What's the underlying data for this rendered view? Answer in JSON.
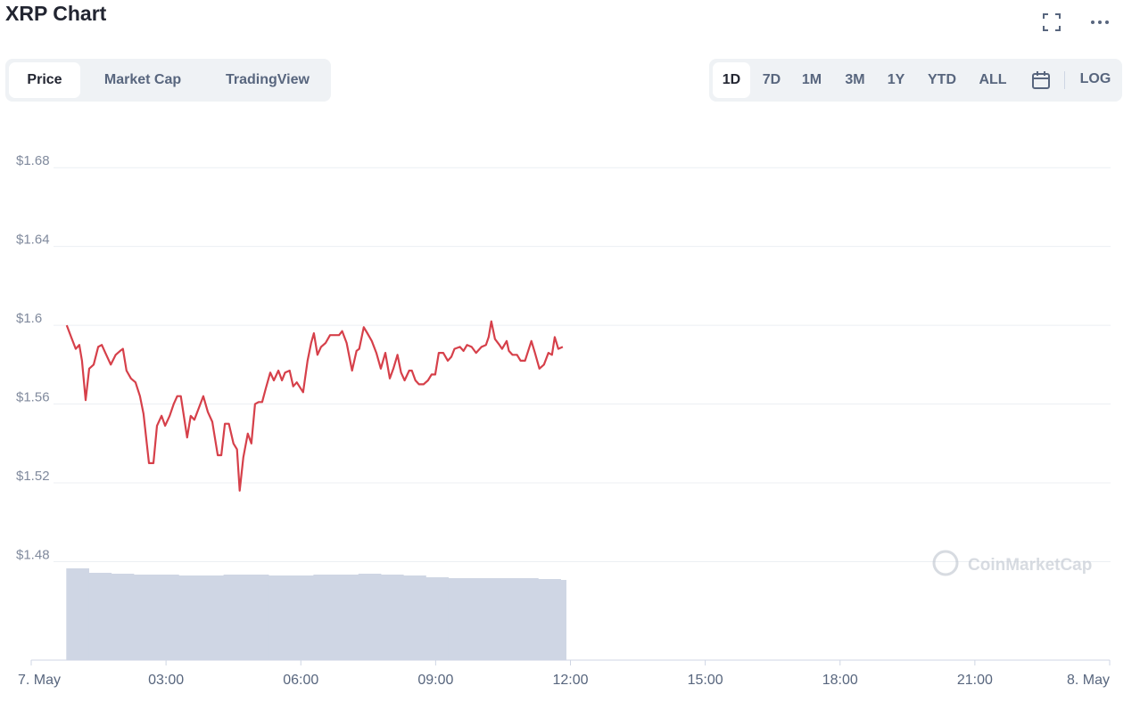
{
  "chart_data": {
    "type": "line",
    "title": "XRP Chart",
    "x": [
      0.79,
      0.89,
      0.99,
      1.07,
      1.13,
      1.21,
      1.29,
      1.39,
      1.49,
      1.57,
      1.65,
      1.77,
      1.88,
      1.98,
      2.04,
      2.12,
      2.22,
      2.32,
      2.42,
      2.5,
      2.62,
      2.72,
      2.8,
      2.9,
      2.98,
      3.08,
      3.17,
      3.25,
      3.33,
      3.47,
      3.55,
      3.63,
      3.73,
      3.83,
      3.93,
      4.03,
      4.15,
      4.23,
      4.31,
      4.4,
      4.5,
      4.58,
      4.64,
      4.72,
      4.82,
      4.9,
      4.98,
      5.06,
      5.14,
      5.22,
      5.32,
      5.4,
      5.5,
      5.58,
      5.65,
      5.75,
      5.83,
      5.91,
      6.05,
      6.15,
      6.23,
      6.29,
      6.37,
      6.45,
      6.55,
      6.65,
      6.75,
      6.85,
      6.92,
      7.02,
      7.14,
      7.24,
      7.3,
      7.4,
      7.48,
      7.58,
      7.68,
      7.78,
      7.88,
      7.98,
      8.06,
      8.15,
      8.23,
      8.31,
      8.41,
      8.47,
      8.55,
      8.63,
      8.73,
      8.83,
      8.91,
      8.99,
      9.07,
      9.17,
      9.27,
      9.35,
      9.42,
      9.54,
      9.62,
      9.7,
      9.8,
      9.9,
      10.02,
      10.12,
      10.18,
      10.24,
      10.32,
      10.42,
      10.48,
      10.58,
      10.63,
      10.71,
      10.81,
      10.89,
      10.99,
      11.13,
      11.21,
      11.31,
      11.41,
      11.51,
      11.59,
      11.65,
      11.73,
      11.83
    ],
    "values": [
      1.6,
      1.594,
      1.588,
      1.59,
      1.582,
      1.562,
      1.578,
      1.58,
      1.589,
      1.59,
      1.586,
      1.58,
      1.585,
      1.587,
      1.588,
      1.577,
      1.573,
      1.571,
      1.564,
      1.555,
      1.53,
      1.53,
      1.549,
      1.554,
      1.549,
      1.554,
      1.56,
      1.564,
      1.564,
      1.543,
      1.554,
      1.552,
      1.558,
      1.564,
      1.556,
      1.551,
      1.534,
      1.534,
      1.55,
      1.55,
      1.54,
      1.537,
      1.516,
      1.533,
      1.545,
      1.54,
      1.56,
      1.561,
      1.561,
      1.568,
      1.576,
      1.572,
      1.577,
      1.572,
      1.576,
      1.577,
      1.569,
      1.571,
      1.566,
      1.582,
      1.591,
      1.596,
      1.585,
      1.589,
      1.591,
      1.595,
      1.595,
      1.595,
      1.597,
      1.591,
      1.577,
      1.587,
      1.588,
      1.599,
      1.596,
      1.592,
      1.586,
      1.578,
      1.586,
      1.573,
      1.578,
      1.585,
      1.576,
      1.572,
      1.577,
      1.577,
      1.572,
      1.57,
      1.57,
      1.572,
      1.575,
      1.575,
      1.586,
      1.586,
      1.582,
      1.584,
      1.588,
      1.589,
      1.587,
      1.59,
      1.589,
      1.586,
      1.589,
      1.59,
      1.594,
      1.602,
      1.593,
      1.59,
      1.588,
      1.592,
      1.587,
      1.585,
      1.585,
      1.582,
      1.582,
      1.592,
      1.586,
      1.578,
      1.58,
      1.586,
      1.585,
      1.594,
      1.588,
      1.589
    ],
    "color": "#d6404a",
    "volume": {
      "bins": [
        0.78,
        1.28,
        1.78,
        2.28,
        2.78,
        3.28,
        3.78,
        4.28,
        4.78,
        5.28,
        5.78,
        6.28,
        6.78,
        7.28,
        7.78,
        8.28,
        8.78,
        9.28,
        9.78,
        10.28,
        10.78,
        11.28,
        11.78,
        11.9
      ],
      "values": [
        103,
        98,
        97,
        96,
        96,
        95,
        95,
        96,
        96,
        95,
        95,
        96,
        96,
        97,
        96,
        95,
        93,
        92,
        92,
        92,
        92,
        91,
        90
      ],
      "color": "#cfd6e4"
    },
    "xlim": [
      0,
      24
    ],
    "xticks": [
      {
        "value": 0,
        "label": "7. May"
      },
      {
        "value": 3,
        "label": "03:00"
      },
      {
        "value": 6,
        "label": "06:00"
      },
      {
        "value": 9,
        "label": "09:00"
      },
      {
        "value": 12,
        "label": "12:00"
      },
      {
        "value": 15,
        "label": "15:00"
      },
      {
        "value": 18,
        "label": "18:00"
      },
      {
        "value": 21,
        "label": "21:00"
      },
      {
        "value": 24,
        "label": "8. May"
      }
    ],
    "ylim": [
      1.43,
      1.7
    ],
    "yticks": [
      {
        "value": 1.48,
        "label": "$1.48"
      },
      {
        "value": 1.52,
        "label": "$1.52"
      },
      {
        "value": 1.56,
        "label": "$1.56"
      },
      {
        "value": 1.6,
        "label": "$1.6"
      },
      {
        "value": 1.64,
        "label": "$1.64"
      },
      {
        "value": 1.68,
        "label": "$1.68"
      }
    ],
    "y2lim": [
      0,
      597
    ],
    "grid": true,
    "watermark": "CoinMarketCap"
  },
  "controls": {
    "tabs": [
      "Price",
      "Market Cap",
      "TradingView"
    ],
    "active_tab": 0,
    "ranges": [
      "1D",
      "7D",
      "1M",
      "3M",
      "1Y",
      "YTD",
      "ALL"
    ],
    "active_range": 0,
    "log": "LOG"
  }
}
